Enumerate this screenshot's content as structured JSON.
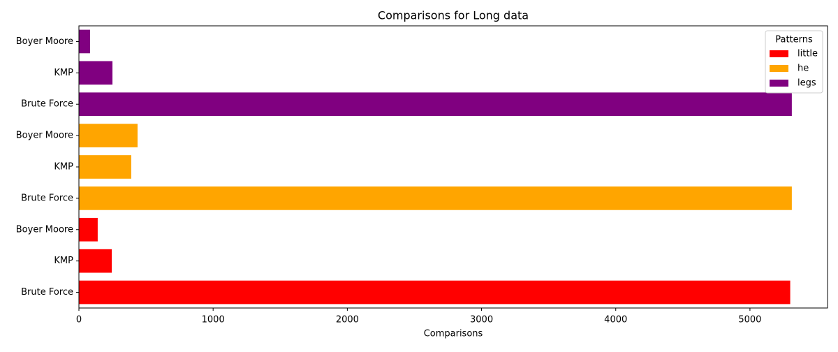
{
  "chart_data": {
    "type": "barh",
    "title": "Comparisons for Long data",
    "xlabel": "Comparisons",
    "categories": [
      "Brute Force",
      "KMP",
      "Boyer Moore",
      "Brute Force",
      "KMP",
      "Boyer Moore",
      "Brute Force",
      "KMP",
      "Boyer Moore"
    ],
    "series": [
      {
        "name": "little",
        "color": "#ff0000",
        "values": [
          5300,
          245,
          140,
          null,
          null,
          null,
          null,
          null,
          null
        ]
      },
      {
        "name": "he",
        "color": "#ffa500",
        "values": [
          null,
          null,
          null,
          5312,
          390,
          437,
          null,
          null,
          null
        ]
      },
      {
        "name": "legs",
        "color": "#800080",
        "values": [
          null,
          null,
          null,
          null,
          null,
          null,
          5312,
          250,
          83
        ]
      }
    ],
    "xlim": [
      0,
      5578
    ],
    "xticks": [
      0,
      1000,
      2000,
      3000,
      4000,
      5000
    ],
    "legend_title": "Patterns",
    "legend": "upper right"
  }
}
